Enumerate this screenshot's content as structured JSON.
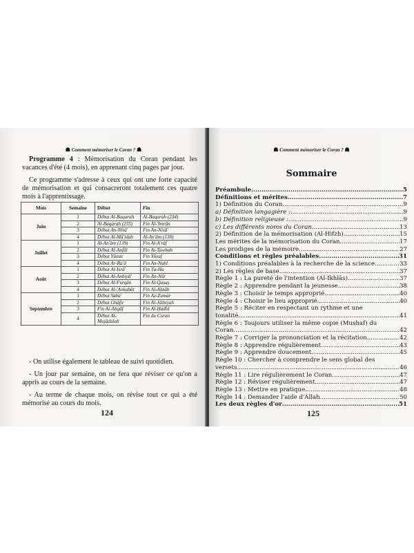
{
  "header": "Comment mémoriser  le Coran ?",
  "left": {
    "program_label": "Programme 4",
    "program_text": " : Mémorisation du Coran pendant les vacances d'été (4 mois), en apprenant cinq pages par jour.",
    "intro": "Ce programme s'adresse à ceux qui ont une forte capacité de mémorisation et qui consacreront totalement ces quatre mois à l'apprentissage.",
    "table": {
      "headers": [
        "Mois",
        "Semaine",
        "Début",
        "Fin"
      ],
      "months": [
        {
          "name": "Juin",
          "rows": [
            [
              "1",
              "Début Al-Baqarah",
              "Al-Baqarah (234)"
            ],
            [
              "2",
              "Al-Baqarah  (235)",
              "Fin Âl-'Imrân"
            ],
            [
              "3",
              "Début An-Nisâ'",
              "Fin An-Nisâ'"
            ],
            [
              "4",
              "Début Al-Mâ'idah",
              "Al-An'âm (138)"
            ]
          ]
        },
        {
          "name": "Juillet",
          "rows": [
            [
              "1",
              "Al-An'âm (139)",
              "Fin Al-A'râf"
            ],
            [
              "2",
              "Début Al-Anfâl",
              "Fin At-Tawbah"
            ],
            [
              "3",
              "Début Yûnus",
              "Fin Yûsuf"
            ],
            [
              "4",
              "Début Ar-Ra'd",
              "Fin An-Naḥl"
            ]
          ]
        },
        {
          "name": "Août",
          "rows": [
            [
              "1",
              "Début Al-Isrâ'",
              "Fin Ṭa-Ha"
            ],
            [
              "2",
              "Début Al-Anbiyâ'",
              "Fin An-Nûr"
            ],
            [
              "3",
              "Début Al-Furqân",
              "Fin Al-Qaṣaṣ"
            ],
            [
              "4",
              "Début Al-'Ankabût",
              "Fin Al-Aḥzâb"
            ]
          ]
        },
        {
          "name": "Septembre",
          "rows": [
            [
              "1",
              "Début Saba'",
              "Fin Az-Zumar"
            ],
            [
              "2",
              "Début Ghâfir",
              "Fin Al-Jâthiyah"
            ],
            [
              "3",
              "Fin Al-Aḥqâf",
              "Fin Al-Ḥadîd"
            ],
            [
              "4",
              "Début Al-Mujâdalah",
              "Fin du Coran"
            ]
          ]
        }
      ]
    },
    "paragraphs": [
      "- On utilise également le tableau de suivi quotidien.",
      "- Un jour par semaine, on ne fera que réviser ce qu'on a appris au cours de la semaine.",
      "- Au terme de chaque mois, on révise tout ce qui a été mémorisé au cours du mois."
    ],
    "page_number": "124"
  },
  "right": {
    "title": "Sommaire",
    "toc": [
      {
        "t": "Préambule",
        "p": "5",
        "style": "bold"
      },
      {
        "t": "Définitions et mérites",
        "p": "7",
        "style": "bold"
      },
      {
        "t": "1) Définition du Coran ",
        "p": "9"
      },
      {
        "t": "a) Définition langagière : ",
        "p": "9",
        "style": "italic"
      },
      {
        "t": "b) Définition religieuse : ",
        "p": "9",
        "style": "italic"
      },
      {
        "t": "c) Les différents noms du Coran.",
        "p": " 13",
        "style": "italic"
      },
      {
        "t": "2) Définition de la mémorisation (Al-Hifzh)",
        "p": " 15"
      },
      {
        "t": "Les mérites de la mémorisation du Coran ",
        "p": " 17"
      },
      {
        "t": "Les prodiges de la mémoire",
        "p": " 27"
      },
      {
        "t": "Conditions et règles préalables ",
        "p": "31",
        "style": "bold"
      },
      {
        "t": "1) Conditions préalables à la recherche de la science",
        "p": " 33"
      },
      {
        "t": "2) Les règles de base",
        "p": " 37"
      },
      {
        "t": "Règle 1 : La pureté de l'intention (Al-Ikhlâs)",
        "p": " 37"
      },
      {
        "t": "Règle 2 : Apprendre pendant la jeunesse ",
        "p": " 38"
      },
      {
        "t": "Règle 3 : Choisir le temps approprié",
        "p": " 40"
      },
      {
        "t": "Règle 4 : Choisir le lieu approprié ",
        "p": " 40"
      },
      {
        "t": "Règle 5 : Réciter en respectant un rythme et une",
        "c": "tonalité ",
        "p": " 41"
      },
      {
        "t": "Règle 6 : Toujours utiliser la même copie (Mushaf) du",
        "c": "Coran ",
        "p": " 42"
      },
      {
        "t": "Règle 7 : Corriger la prononciation et la récitation ",
        "p": " 42"
      },
      {
        "t": "Règle 8 : Apprendre régulièrement",
        "p": " 43"
      },
      {
        "t": "Règle 9 : Apprendre doucement ",
        "p": " 45"
      },
      {
        "t": "Règle 10 : Chercher à comprendre le sens global des",
        "c": "versets",
        "p": " 46"
      },
      {
        "t": "Règle 11 : Lire régulièrement le Coran ",
        "p": " 47"
      },
      {
        "t": "Règle 12 : Réviser régulièrement",
        "p": " 47"
      },
      {
        "t": "Règle 13 : Mettre en pratique",
        "p": " 48"
      },
      {
        "t": "Règle 14 : Demander l'aide d'Allah",
        "p": " 50"
      },
      {
        "t": "Les deux règles d'or ",
        "p": "51",
        "style": "bold"
      }
    ],
    "page_number": "125"
  }
}
